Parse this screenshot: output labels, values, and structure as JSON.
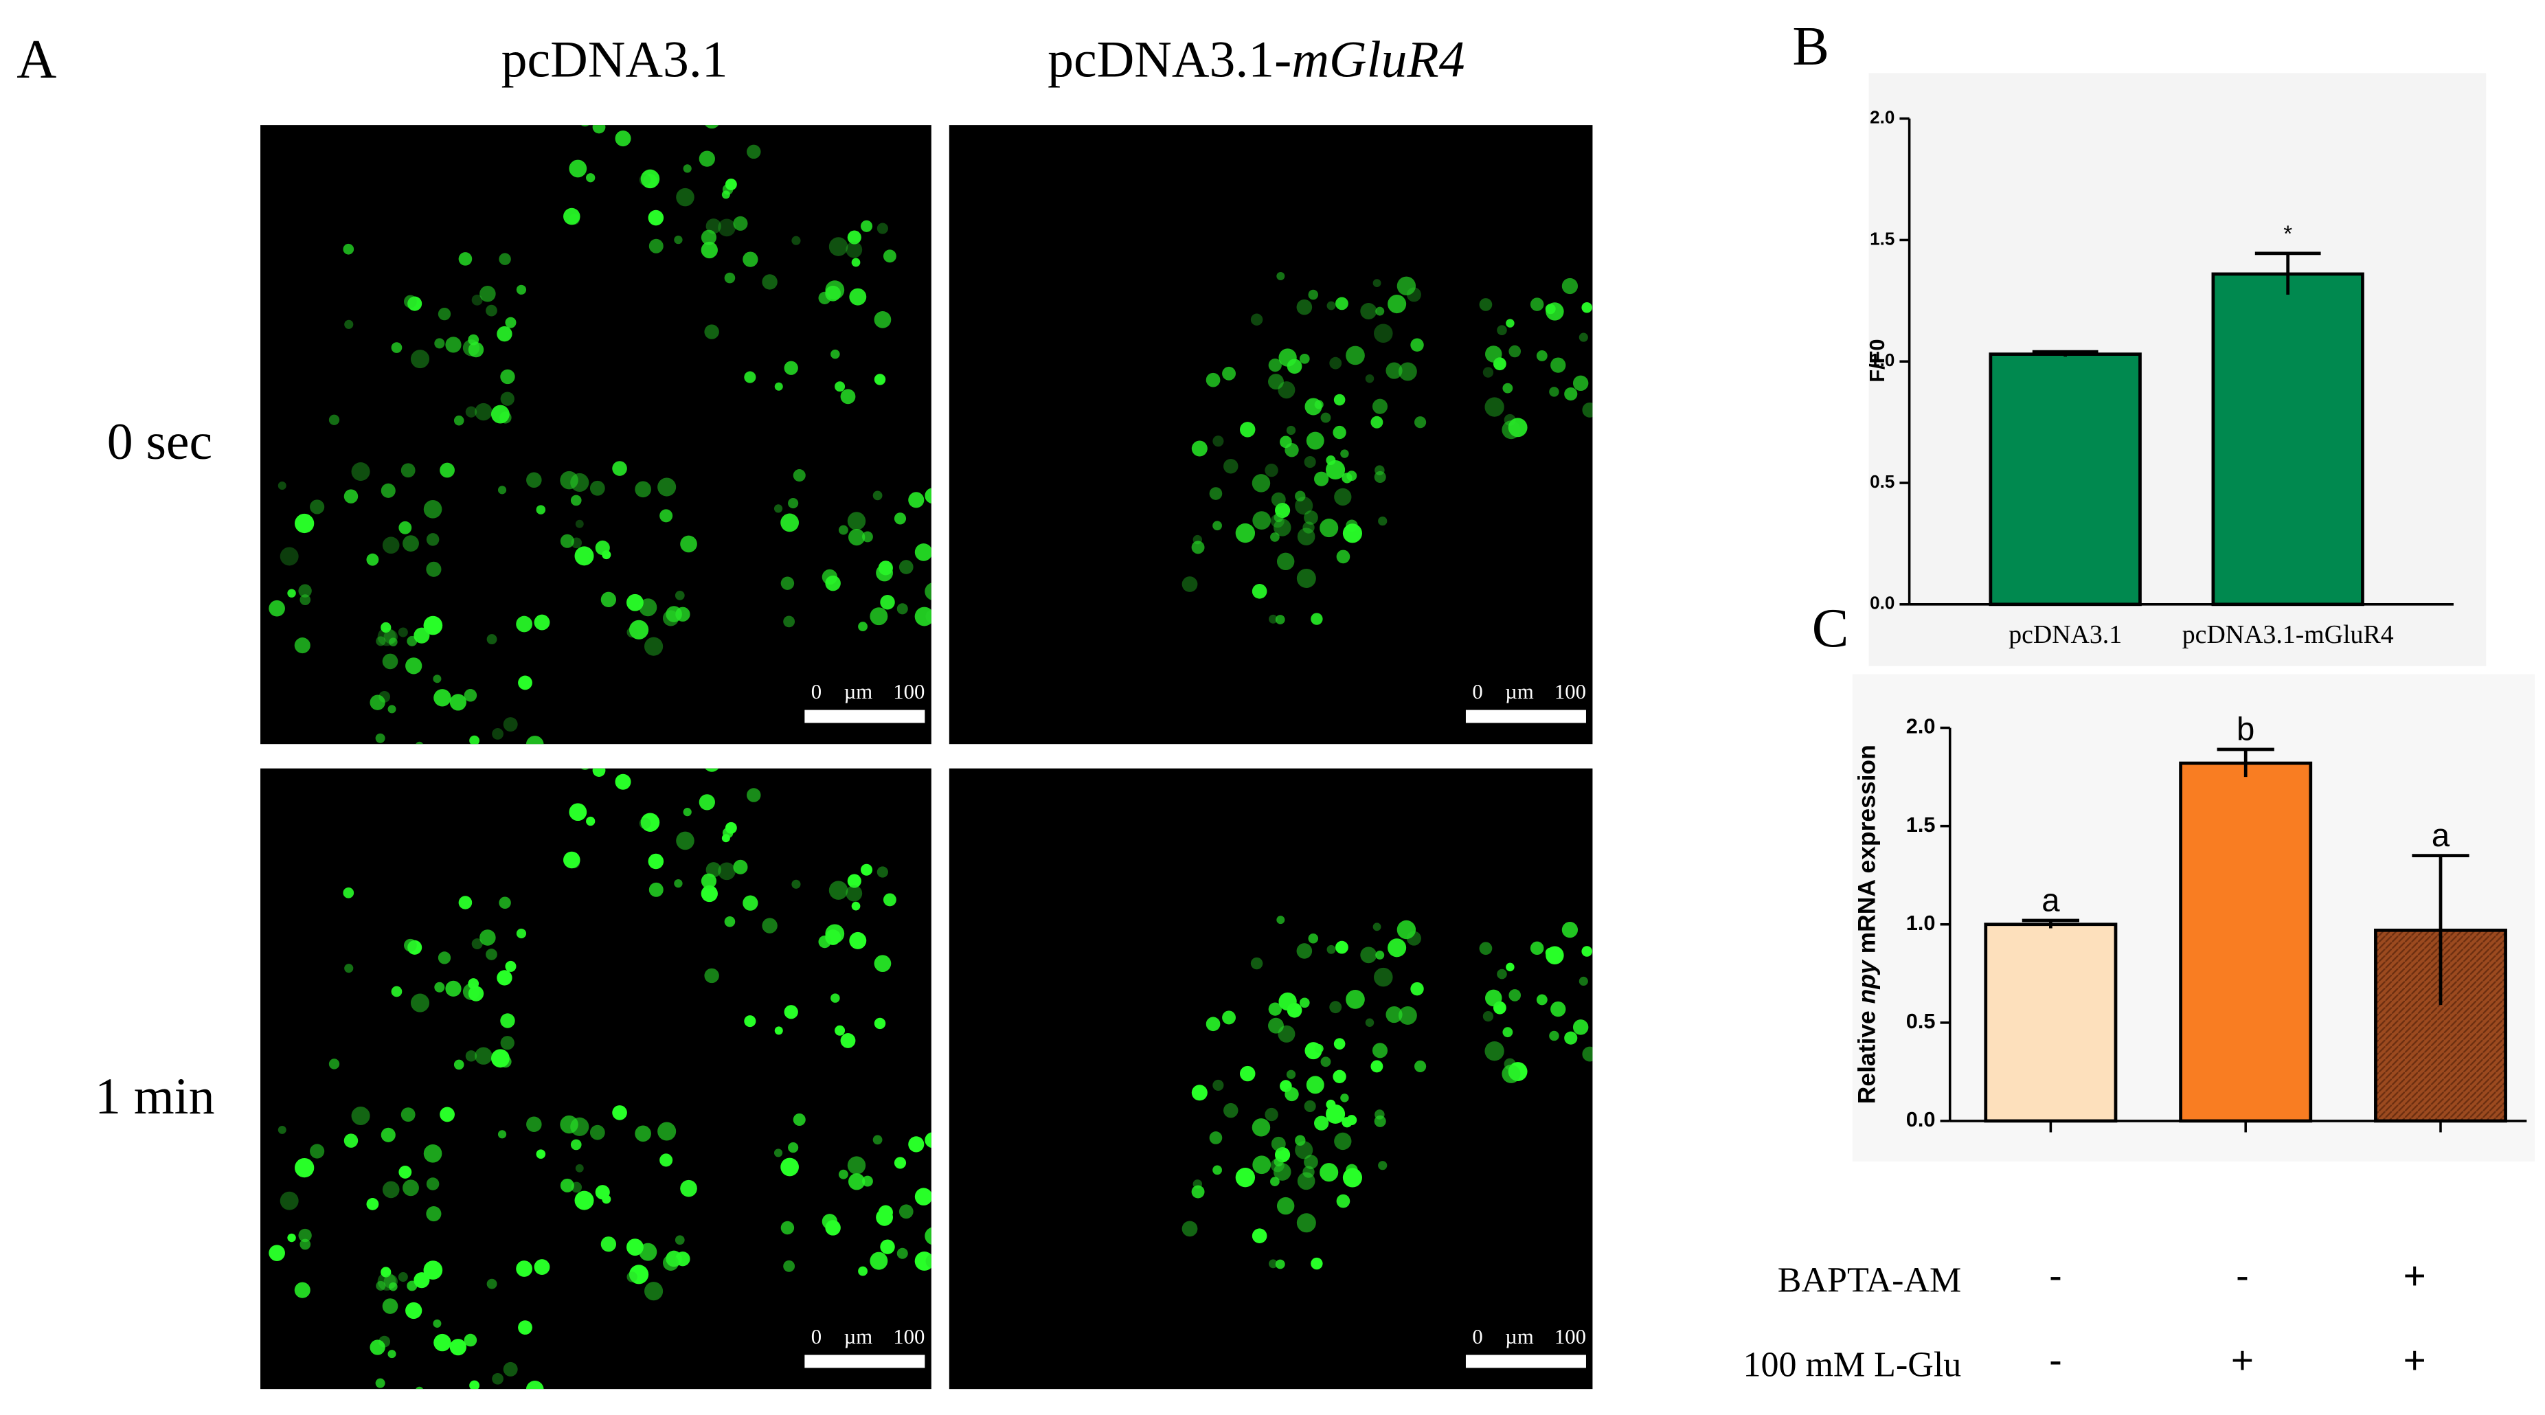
{
  "panel_a": {
    "label": "A",
    "column_titles": [
      {
        "plain": "pcDNA3.1"
      },
      {
        "plain": "pcDNA3.1-",
        "italic": "mGluR4"
      }
    ],
    "row_labels": [
      "0 sec",
      "1 min"
    ],
    "scale_bar_labels": [
      "0",
      "µm",
      "100"
    ]
  },
  "chart_data": [
    {
      "type": "bar",
      "panel_label": "B",
      "ylabel": "F/F0",
      "categories": [
        "pcDNA3.1",
        "pcDNA3.1-mGluR4"
      ],
      "values": [
        1.03,
        1.36
      ],
      "errors": [
        0.01,
        0.085
      ],
      "bar_labels": [
        null,
        "*"
      ],
      "colors": [
        "#00894f",
        "#00894f"
      ],
      "hatched": [
        false,
        false
      ],
      "ylim": [
        0,
        2
      ],
      "yticks": [
        {
          "value": 0,
          "label": "0.0"
        },
        {
          "value": 0.5,
          "label": "0.5"
        },
        {
          "value": 1,
          "label": "1.0"
        },
        {
          "value": 1.5,
          "label": "1.5"
        },
        {
          "value": 2,
          "label": "2.0"
        }
      ]
    },
    {
      "type": "bar",
      "panel_label": "C",
      "ylabel": {
        "before": "Relative ",
        "italic": "npy",
        "after": " mRNA expression"
      },
      "categories": [
        null,
        null,
        null
      ],
      "values": [
        1.0,
        1.82,
        0.97
      ],
      "errors": [
        0.02,
        0.07,
        0.38
      ],
      "bar_labels": [
        "a",
        "b",
        "a"
      ],
      "colors": [
        "#fde0bc",
        "#f97d22",
        "#9c4a1f"
      ],
      "hatched": [
        false,
        false,
        true
      ],
      "ylim": [
        0,
        2
      ],
      "yticks": [
        {
          "value": 0,
          "label": "0.0"
        },
        {
          "value": 0.5,
          "label": "0.5"
        },
        {
          "value": 1,
          "label": "1.0"
        },
        {
          "value": 1.5,
          "label": "1.5"
        },
        {
          "value": 2,
          "label": "2.0"
        }
      ],
      "treatments": [
        {
          "label": "BAPTA-AM",
          "marks": [
            "-",
            "-",
            "+"
          ]
        },
        {
          "label": "100 mM L-Glu",
          "marks": [
            "-",
            "+",
            "+"
          ]
        }
      ]
    }
  ]
}
